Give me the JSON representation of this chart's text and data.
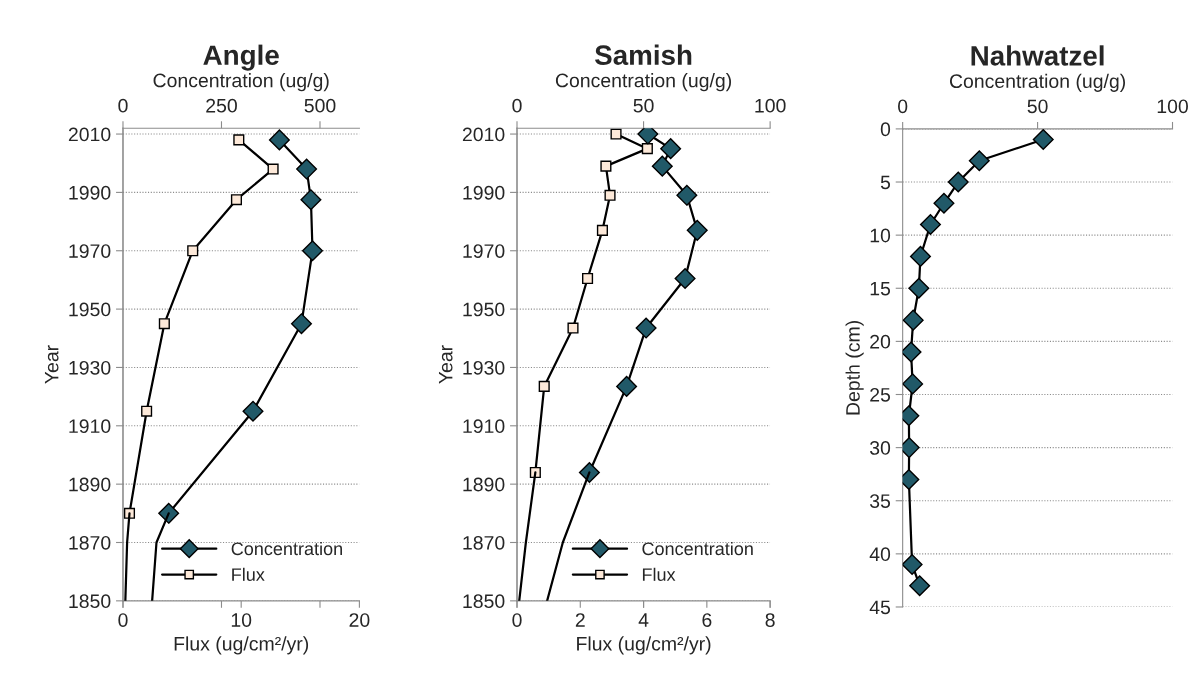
{
  "chart_data": [
    {
      "type": "line",
      "title": "Angle",
      "x2label": "Concentration (ug/g)",
      "xlabel": "Flux (ug/cm²/yr)",
      "ylabel": "Year",
      "xlim": [
        0,
        20
      ],
      "xticks": [
        0,
        10,
        20
      ],
      "x2lim": [
        0,
        600
      ],
      "x2ticks": [
        0,
        250,
        500
      ],
      "ylim": [
        1850,
        2012
      ],
      "yticks": [
        1850,
        1870,
        1890,
        1910,
        1930,
        1950,
        1970,
        1990,
        2010
      ],
      "grid": "y",
      "legend": "bottom right",
      "series": [
        {
          "name": "Concentration",
          "color": "#215968",
          "marker": "diamond",
          "axis": "x2",
          "x": [
            397,
            466,
            477,
            481,
            453,
            330,
            116
          ],
          "values": [
            2008,
            1998,
            1987.5,
            1970,
            1945,
            1915,
            1880
          ]
        },
        {
          "name": "Flux",
          "color": "#fde9d9",
          "marker": "square",
          "x": [
            9.8,
            12.7,
            9.6,
            5.9,
            3.5,
            2.0,
            0.55
          ],
          "values": [
            2008,
            1998,
            1987.5,
            1970,
            1945,
            1915,
            1880
          ]
        },
        {
          "color": "#000000",
          "marker": "none",
          "axis": "x2",
          "x": [
            116,
            85,
            74
          ],
          "values": [
            1880,
            1870,
            1850
          ]
        },
        {
          "color": "#000000",
          "marker": "none",
          "x": [
            0.55,
            0.35,
            0.2
          ],
          "values": [
            1880,
            1870,
            1850
          ]
        }
      ]
    },
    {
      "type": "line",
      "title": "Samish",
      "x2label": "Concentration (ug/g)",
      "xlabel": "Flux (ug/cm²/yr)",
      "ylabel": "Year",
      "xlim": [
        0,
        8
      ],
      "xticks": [
        0,
        2,
        4,
        6,
        8
      ],
      "x2lim": [
        0,
        100
      ],
      "x2ticks": [
        0,
        50,
        100
      ],
      "ylim": [
        1850,
        2012
      ],
      "yticks": [
        1850,
        1870,
        1890,
        1910,
        1930,
        1950,
        1970,
        1990,
        2010
      ],
      "grid": "y",
      "legend": "bottom right",
      "series": [
        {
          "name": "Concentration",
          "color": "#215968",
          "marker": "diamond",
          "axis": "x2",
          "x": [
            51.7,
            60.7,
            57.4,
            67.1,
            71.2,
            66.4,
            51.0,
            43.3,
            28.6
          ],
          "values": [
            2010,
            2005,
            1999,
            1989,
            1977,
            1960.5,
            1943.5,
            1923.5,
            1894
          ]
        },
        {
          "name": "Flux",
          "color": "#fde9d9",
          "marker": "square",
          "x": [
            3.13,
            4.12,
            2.81,
            2.94,
            2.7,
            2.23,
            1.77,
            0.86,
            0.58
          ],
          "values": [
            2010,
            2005,
            1999,
            1989,
            1977,
            1960.5,
            1943.5,
            1923.5,
            1894
          ]
        },
        {
          "color": "#000000",
          "marker": "none",
          "axis": "x2",
          "x": [
            28.6,
            18.1,
            11.9
          ],
          "values": [
            1894,
            1870,
            1850
          ]
        },
        {
          "color": "#000000",
          "marker": "none",
          "x": [
            0.58,
            0.28,
            0.07
          ],
          "values": [
            1894,
            1870,
            1850
          ]
        }
      ]
    },
    {
      "type": "line",
      "title": "Nahwatzel",
      "xlabel": "Concentration (ug/g)",
      "ylabel": "Depth (cm)",
      "xlim": [
        0,
        100
      ],
      "xticks": [
        0,
        50,
        100
      ],
      "ylim": [
        45,
        0
      ],
      "yticks": [
        0,
        5,
        10,
        15,
        20,
        25,
        30,
        35,
        40,
        45
      ],
      "grid": "y",
      "legend": false,
      "series": [
        {
          "color": "#215968",
          "marker": "diamond",
          "x": [
            52.1,
            28.4,
            20.6,
            15.3,
            10.3,
            6.6,
            6.0,
            3.9,
            3.1,
            3.7,
            2.3,
            2.4,
            2.3,
            3.5,
            6.3
          ],
          "values": [
            1,
            3,
            5,
            7,
            9,
            12,
            15,
            18,
            21,
            24,
            27,
            30,
            33,
            41,
            43
          ]
        }
      ]
    }
  ]
}
